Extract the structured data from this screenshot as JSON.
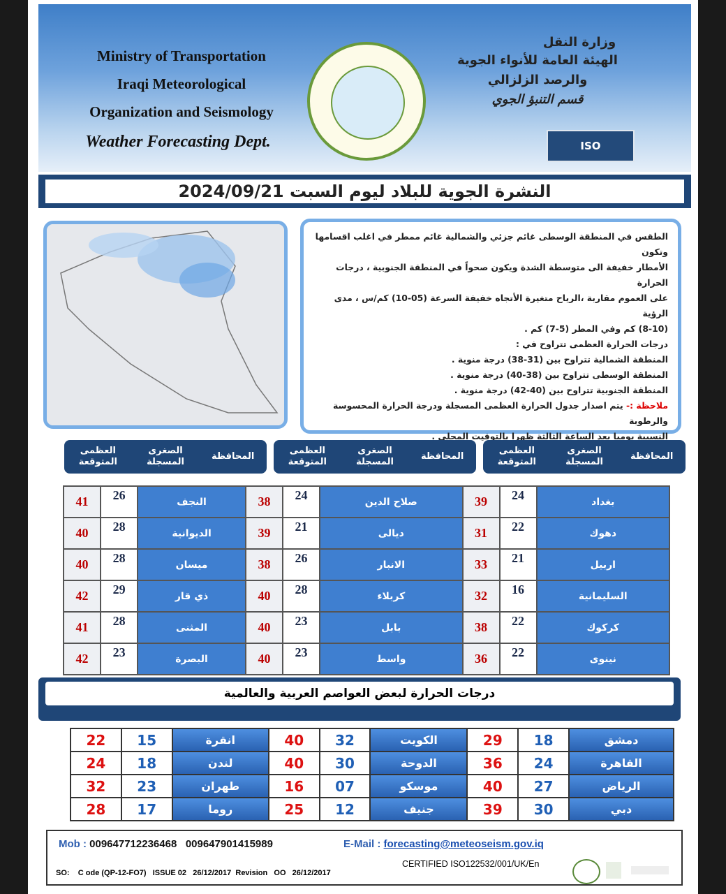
{
  "header": {
    "en_lines": [
      "Ministry of Transportation",
      "Iraqi Meteorological",
      "Organization and Seismology"
    ],
    "en_dept": "Weather Forecasting Dept.",
    "ar_lines": [
      "وزارة النقل",
      "الهيئة العامة للأنواء الجوية",
      "والرصد الزلزالي"
    ],
    "ar_dept": "قسم التنبؤ الجوي",
    "iso": "ISO"
  },
  "title": "النشرة الجوية للبلاد ليوم السبت 2024/09/21",
  "forecast": {
    "lines": [
      "الطقس في المنطقة الوسطى غائم جزئي والشمالية غائم ممطر في اغلب اقسامها وتكون",
      "الأمطار خفيفة الى متوسطة الشدة ويكون صحواً في المنطقة الجنوبية ، درجات الحرارة",
      "على العموم مقاربة ،الرياح متغيرة الأتجاه خفيفة السرعة (05-10) كم/س ، مدى الرؤية",
      "(8-10) كم وفي المطر (5-7) كم .",
      "درجات الحرارة العظمى تتراوح في :",
      "المنطقة الشمالية تتراوح بين (31-38) درجة منوية .",
      "المنطقة الوسطى تتراوح بين (38-40) درجة منوية .",
      "المنطقة الجنوبية تتراوح بين (40-42) درجة منوية ."
    ],
    "note_label": "ملاحظة :-",
    "note_lines": [
      "يتم اصدار جدول الحرارة العظمى المسجلة ودرجة الحرارة المحسوسة والرطوبة",
      "النسبية يوميا بعد الساعة الثالثة ظهرا بالتوقيت المحلي ."
    ]
  },
  "iraq_table": {
    "headers": [
      [
        "المحافظة",
        "الصغرى المسجلة",
        "العظمى المتوقعة"
      ],
      [
        "المحافظة",
        "الصغرى المسجلة",
        "العظمى المتوقعة"
      ],
      [
        "المحافظة",
        "الصغرى المسجلة",
        "العظمى المتوقعة"
      ]
    ],
    "rows": [
      [
        [
          "بغداد",
          "24",
          "39"
        ],
        [
          "صلاح الدين",
          "24",
          "38"
        ],
        [
          "النجف",
          "26",
          "41"
        ]
      ],
      [
        [
          "دهوك",
          "22",
          "31"
        ],
        [
          "ديالى",
          "21",
          "39"
        ],
        [
          "الديوانية",
          "28",
          "40"
        ]
      ],
      [
        [
          "اربيل",
          "21",
          "33"
        ],
        [
          "الانبار",
          "26",
          "38"
        ],
        [
          "ميسان",
          "28",
          "40"
        ]
      ],
      [
        [
          "السليمانية",
          "16",
          "32"
        ],
        [
          "كربلاء",
          "28",
          "40"
        ],
        [
          "ذي قار",
          "29",
          "42"
        ]
      ],
      [
        [
          "كركوك",
          "22",
          "38"
        ],
        [
          "بابل",
          "23",
          "40"
        ],
        [
          "المثنى",
          "28",
          "41"
        ]
      ],
      [
        [
          "نينوى",
          "22",
          "36"
        ],
        [
          "واسط",
          "23",
          "40"
        ],
        [
          "البصرة",
          "23",
          "42"
        ]
      ]
    ]
  },
  "capitals": {
    "title": "درجات الحرارة لبعض العواصم العربية والعالمية",
    "rows": [
      [
        [
          "دمشق",
          "18",
          "29"
        ],
        [
          "الكويت",
          "32",
          "40"
        ],
        [
          "انقرة",
          "15",
          "22"
        ]
      ],
      [
        [
          "القاهرة",
          "24",
          "36"
        ],
        [
          "الدوحة",
          "30",
          "40"
        ],
        [
          "لندن",
          "18",
          "24"
        ]
      ],
      [
        [
          "الرياض",
          "27",
          "40"
        ],
        [
          "موسكو",
          "07",
          "16"
        ],
        [
          "طهران",
          "23",
          "32"
        ]
      ],
      [
        [
          "دبي",
          "30",
          "39"
        ],
        [
          "جنيف",
          "12",
          "25"
        ],
        [
          "روما",
          "17",
          "28"
        ]
      ]
    ]
  },
  "footer": {
    "mob_label": "Mob :",
    "phones": [
      "009647712236468",
      "009647901415989"
    ],
    "email_label": "E-Mail :",
    "email": "forecasting@meteoseism.gov.iq",
    "certified": "CERTIFIED ISO122532/001/UK/En",
    "code": "SO:    C ode (QP-12-FO7)   ISSUE 02   26/12/2017  Revision   OO   26/12/2017"
  }
}
